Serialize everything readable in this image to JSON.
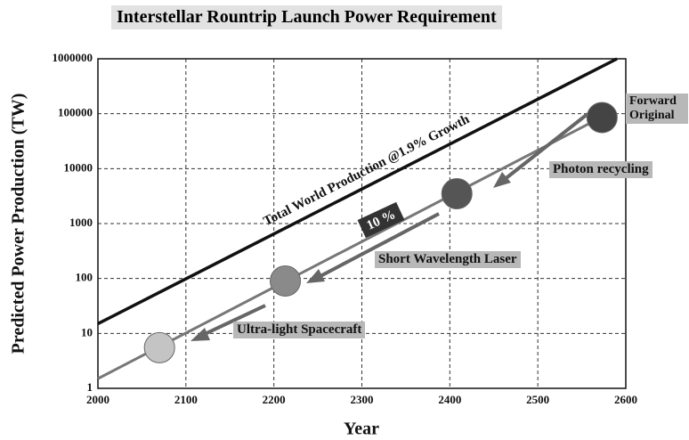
{
  "chart_data": {
    "type": "line",
    "title": "Interstellar Rountrip Launch Power Requirement",
    "x_label": "Year",
    "y_label": "Predicted Power Production (TW)",
    "xlim": [
      2000,
      2600
    ],
    "xticks": [
      2000,
      2100,
      2200,
      2300,
      2400,
      2500,
      2600
    ],
    "ylim": [
      1,
      1000000
    ],
    "yticks": [
      1,
      10,
      100,
      1000,
      10000,
      100000,
      1000000
    ],
    "log_y": true,
    "grid": true,
    "series": [
      {
        "color": "#111111",
        "x": [
          2000,
          2590
        ],
        "values": [
          15,
          1000000
        ]
      },
      {
        "color": "#777777",
        "x": [
          2000,
          2580
        ],
        "values": [
          1.5,
          100000
        ]
      }
    ],
    "points": {
      "x": [
        2070,
        2213,
        2408,
        2573
      ],
      "values": [
        5.5,
        90,
        3500,
        85000
      ],
      "colors": [
        "#c4c4c4",
        "#8a8a8a",
        "#555555",
        "#444444"
      ]
    },
    "line_label": "Total World Production @1.9% Growth",
    "rate_label": "10 %",
    "annotations": [
      "Ultra-light Spacecraft",
      "Short Wavelength Laser",
      "Photon recycling",
      "Forward Original"
    ]
  }
}
